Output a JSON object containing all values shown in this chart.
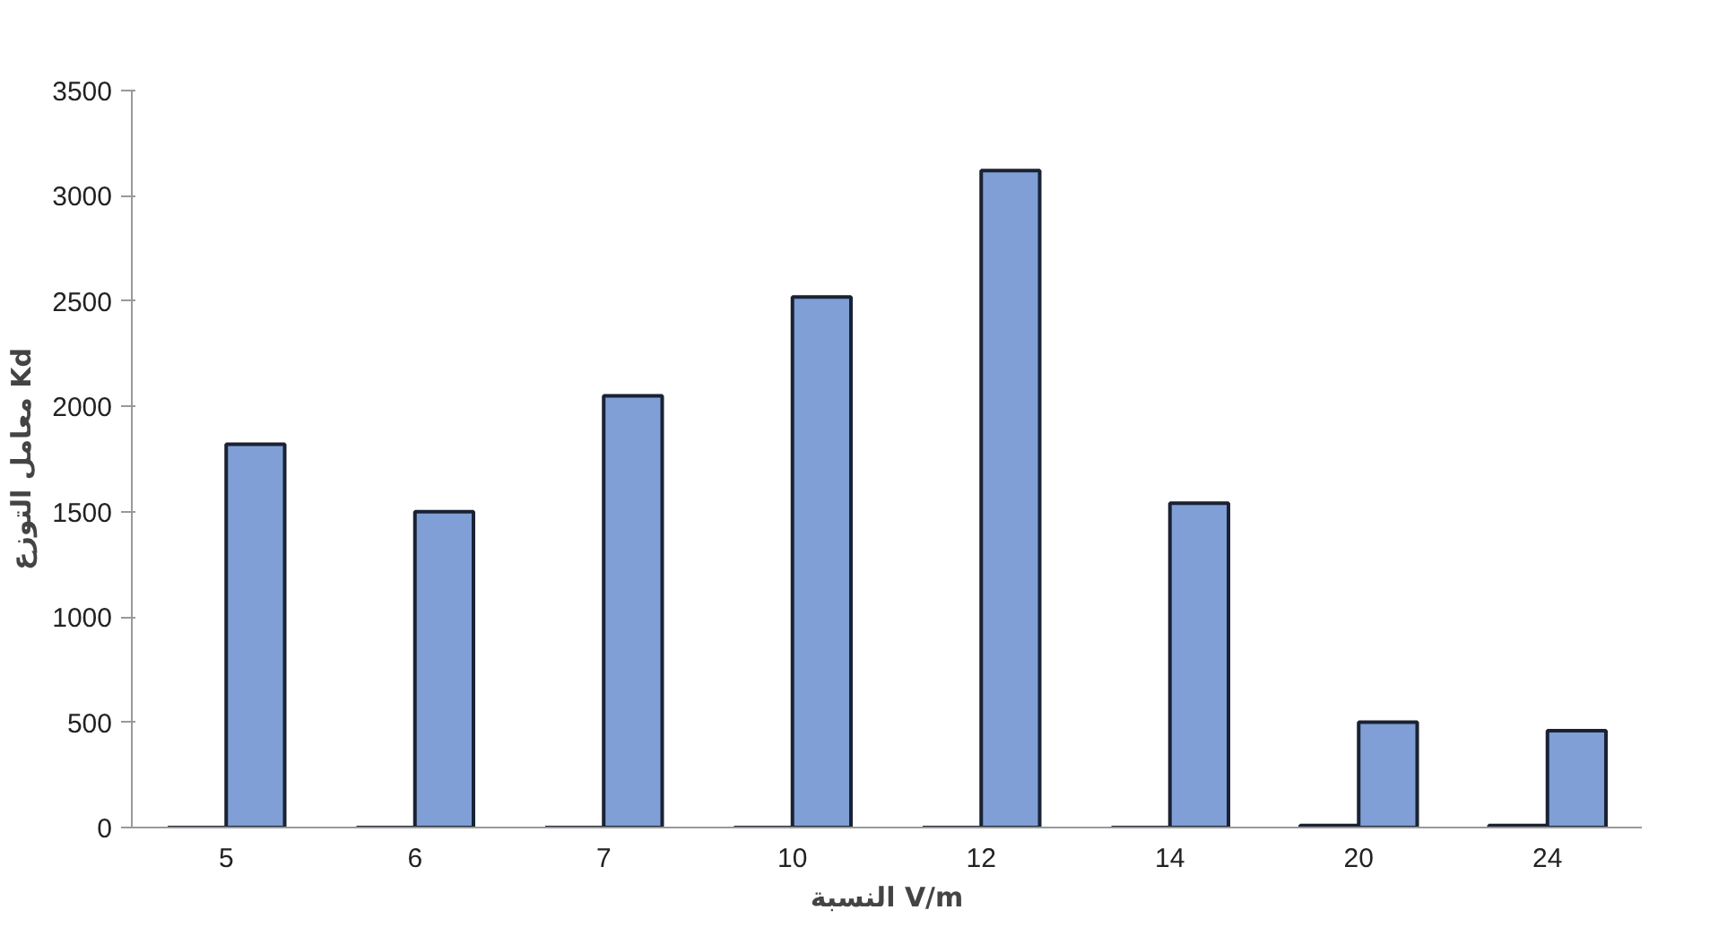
{
  "chart_data": {
    "type": "bar",
    "xlabel": "النسبة V/m",
    "ylabel": "معامل التوزع Kd",
    "categories": [
      "5",
      "6",
      "7",
      "10",
      "12",
      "14",
      "20",
      "24"
    ],
    "series": [
      {
        "color": "#1a2233",
        "values": [
          0,
          0,
          0,
          0,
          0,
          0,
          10,
          10
        ]
      },
      {
        "color": "#7f9fd6",
        "values": [
          1820,
          1500,
          2050,
          2520,
          3120,
          1540,
          500,
          460
        ]
      }
    ],
    "ylim": [
      0,
      3500
    ],
    "yticks": [
      0,
      500,
      1000,
      1500,
      2000,
      2500,
      3000,
      3500
    ],
    "grid": false
  }
}
